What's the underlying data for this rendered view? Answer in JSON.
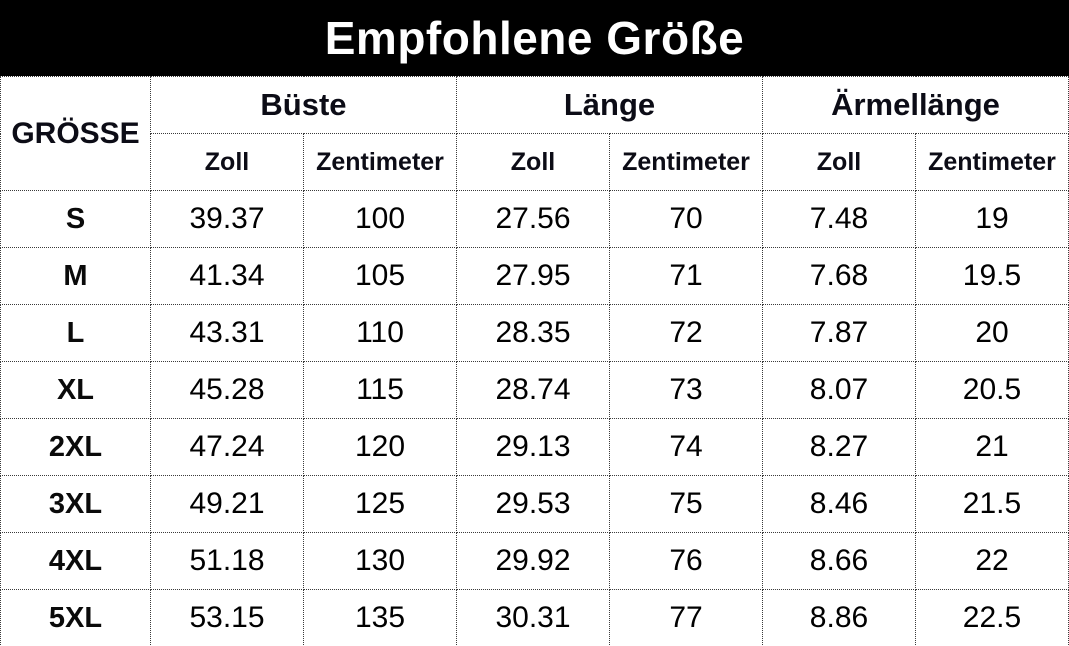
{
  "banner": {
    "title": "Empfohlene Größe"
  },
  "colors": {
    "banner_bg": "#000000",
    "banner_fg": "#ffffff",
    "table_bg": "#ffffff",
    "text": "#0c0c16",
    "border": "#3a3a3a"
  },
  "table": {
    "corner_header": "GRÖSSE",
    "group_headers": [
      "Büste",
      "Länge",
      "Ärmellänge"
    ],
    "unit_headers": [
      "Zoll",
      "Zentimeter",
      "Zoll",
      "Zentimeter",
      "Zoll",
      "Zentimeter"
    ],
    "rows": [
      {
        "size": "S",
        "values": [
          "39.37",
          "100",
          "27.56",
          "70",
          "7.48",
          "19"
        ]
      },
      {
        "size": "M",
        "values": [
          "41.34",
          "105",
          "27.95",
          "71",
          "7.68",
          "19.5"
        ]
      },
      {
        "size": "L",
        "values": [
          "43.31",
          "110",
          "28.35",
          "72",
          "7.87",
          "20"
        ]
      },
      {
        "size": "XL",
        "values": [
          "45.28",
          "115",
          "28.74",
          "73",
          "8.07",
          "20.5"
        ]
      },
      {
        "size": "2XL",
        "values": [
          "47.24",
          "120",
          "29.13",
          "74",
          "8.27",
          "21"
        ]
      },
      {
        "size": "3XL",
        "values": [
          "49.21",
          "125",
          "29.53",
          "75",
          "8.46",
          "21.5"
        ]
      },
      {
        "size": "4XL",
        "values": [
          "51.18",
          "130",
          "29.92",
          "76",
          "8.66",
          "22"
        ]
      },
      {
        "size": "5XL",
        "values": [
          "53.15",
          "135",
          "30.31",
          "77",
          "8.86",
          "22.5"
        ]
      }
    ]
  },
  "chart_data": {
    "type": "table",
    "title": "Empfohlene Größe",
    "columns": [
      "GRÖSSE",
      "Büste Zoll",
      "Büste Zentimeter",
      "Länge Zoll",
      "Länge Zentimeter",
      "Ärmellänge Zoll",
      "Ärmellänge Zentimeter"
    ],
    "rows": [
      [
        "S",
        39.37,
        100,
        27.56,
        70,
        7.48,
        19
      ],
      [
        "M",
        41.34,
        105,
        27.95,
        71,
        7.68,
        19.5
      ],
      [
        "L",
        43.31,
        110,
        28.35,
        72,
        7.87,
        20
      ],
      [
        "XL",
        45.28,
        115,
        28.74,
        73,
        8.07,
        20.5
      ],
      [
        "2XL",
        47.24,
        120,
        29.13,
        74,
        8.27,
        21
      ],
      [
        "3XL",
        49.21,
        125,
        29.53,
        75,
        8.46,
        21.5
      ],
      [
        "4XL",
        51.18,
        130,
        29.92,
        76,
        8.66,
        22
      ],
      [
        "5XL",
        53.15,
        135,
        30.31,
        77,
        8.86,
        22.5
      ]
    ]
  }
}
